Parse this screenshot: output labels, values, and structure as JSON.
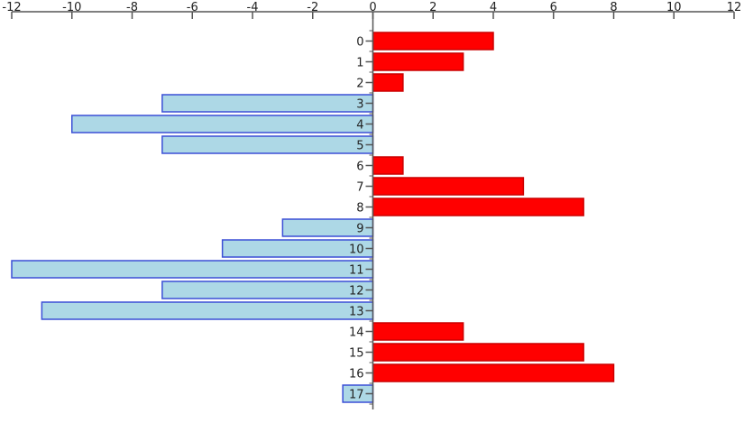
{
  "chart_data": {
    "type": "bar",
    "orientation": "horizontal",
    "title": "",
    "xlabel": "",
    "ylabel": "",
    "x_axis_position": "top",
    "xlim": [
      -12,
      12
    ],
    "x_ticks": [
      -12,
      -10,
      -8,
      -6,
      -4,
      -2,
      0,
      2,
      4,
      6,
      8,
      10,
      12
    ],
    "x_tick_labels": [
      "-12",
      "-10",
      "-8",
      "-6",
      "-4",
      "-2",
      "0",
      "2",
      "4",
      "6",
      "8",
      "10",
      "12"
    ],
    "categories": [
      "0",
      "1",
      "2",
      "3",
      "4",
      "5",
      "6",
      "7",
      "8",
      "9",
      "10",
      "11",
      "12",
      "13",
      "14",
      "15",
      "16",
      "17"
    ],
    "values": [
      4,
      3,
      1,
      -7,
      -10,
      -7,
      1,
      5,
      7,
      -3,
      -5,
      -12,
      -7,
      -11,
      3,
      7,
      8,
      -1
    ],
    "grid": false,
    "legend": "none",
    "colors": {
      "positive_fill": "#ff0000",
      "positive_stroke": "#cc0000",
      "negative_fill": "#add8e6",
      "negative_stroke": "#3b4fd6",
      "axis": "#555555"
    }
  }
}
